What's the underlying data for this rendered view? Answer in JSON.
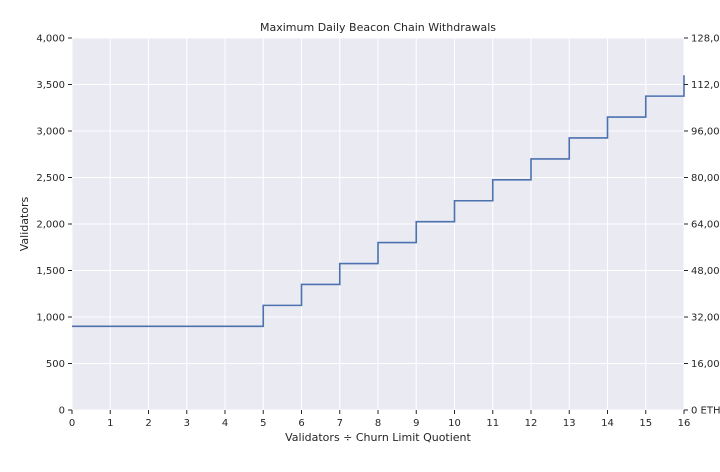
{
  "chart_data": {
    "type": "line",
    "step": "post",
    "title": "Maximum Daily Beacon Chain Withdrawals",
    "xlabel": "Validators ÷ Churn Limit Quotient",
    "ylabel": "Validators",
    "xlim": [
      0,
      16
    ],
    "ylim": [
      0,
      4000
    ],
    "xticks": [
      0,
      1,
      2,
      3,
      4,
      5,
      6,
      7,
      8,
      9,
      10,
      11,
      12,
      13,
      14,
      15,
      16
    ],
    "yticks": [
      0,
      500,
      1000,
      1500,
      2000,
      2500,
      3000,
      3500,
      4000
    ],
    "ytick_labels": [
      "0",
      "500",
      "1,000",
      "1,500",
      "2,000",
      "2,500",
      "3,000",
      "3,500",
      "4,000"
    ],
    "y2lim": [
      0,
      128000
    ],
    "y2ticks": [
      0,
      16000,
      32000,
      48000,
      64000,
      80000,
      96000,
      112000,
      128000
    ],
    "y2tick_labels": [
      "0 ETH",
      "16,000 ETH",
      "32,000 ETH",
      "48,000 ETH",
      "64,000 ETH",
      "80,000 ETH",
      "96,000 ETH",
      "112,000 ETH",
      "128,000 ETH"
    ],
    "grid": true,
    "colors": {
      "line": "#4c72b0",
      "background": "#eaeaf2",
      "grid": "#ffffff"
    },
    "series": [
      {
        "x": [
          0,
          1,
          2,
          3,
          4,
          5,
          6,
          7,
          8,
          9,
          10,
          11,
          12,
          13,
          14,
          15,
          16
        ],
        "values": [
          900,
          900,
          900,
          900,
          900,
          1125,
          1350,
          1575,
          1800,
          2025,
          2250,
          2475,
          2700,
          2925,
          3150,
          3375,
          3600
        ]
      }
    ]
  }
}
